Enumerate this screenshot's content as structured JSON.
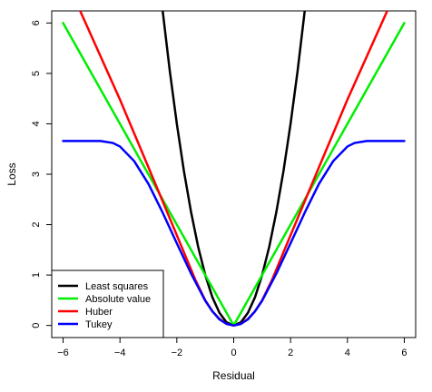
{
  "chart_data": {
    "type": "line",
    "title": "",
    "xlabel": "Residual",
    "ylabel": "Loss",
    "xlim": [
      -6.4,
      6.4
    ],
    "ylim": [
      -0.24,
      6.24
    ],
    "grid": false,
    "legend_position": "bottom-left",
    "x_ticks": [
      -6,
      -4,
      -2,
      0,
      2,
      4,
      6
    ],
    "x_tick_labels": [
      "−6",
      "−4",
      "−2",
      "0",
      "2",
      "4",
      "6"
    ],
    "y_ticks": [
      0,
      1,
      2,
      3,
      4,
      5,
      6
    ],
    "y_tick_labels": [
      "0",
      "1",
      "2",
      "3",
      "4",
      "5",
      "6"
    ],
    "series": [
      {
        "name": "Least squares",
        "color": "#000000",
        "x": [
          -2.5,
          -2.25,
          -2.0,
          -1.75,
          -1.5,
          -1.25,
          -1.0,
          -0.75,
          -0.5,
          -0.25,
          0.0,
          0.25,
          0.5,
          0.75,
          1.0,
          1.25,
          1.5,
          1.75,
          2.0,
          2.25,
          2.5
        ],
        "y": [
          6.25,
          5.06,
          4.0,
          3.06,
          2.25,
          1.56,
          1.0,
          0.56,
          0.25,
          0.06,
          0.0,
          0.06,
          0.25,
          0.56,
          1.0,
          1.56,
          2.25,
          3.06,
          4.0,
          5.06,
          6.25
        ]
      },
      {
        "name": "Absolute value",
        "color": "#00ee00",
        "x": [
          -6,
          0,
          6
        ],
        "y": [
          6,
          0,
          6
        ]
      },
      {
        "name": "Huber",
        "color": "#ff0000",
        "x": [
          -5.4,
          -4.0,
          -3.0,
          -2.0,
          -1.345,
          -1.0,
          -0.75,
          -0.5,
          -0.25,
          0.0,
          0.25,
          0.5,
          0.75,
          1.0,
          1.345,
          2.0,
          3.0,
          4.0,
          5.4
        ],
        "y": [
          6.24,
          4.48,
          3.14,
          1.79,
          0.9,
          0.5,
          0.28,
          0.13,
          0.03,
          0.0,
          0.03,
          0.13,
          0.28,
          0.5,
          0.9,
          1.79,
          3.14,
          4.48,
          6.24
        ]
      },
      {
        "name": "Tukey",
        "color": "#0000ff",
        "x": [
          -6.0,
          -5.0,
          -4.685,
          -4.25,
          -4.0,
          -3.5,
          -3.0,
          -2.5,
          -2.0,
          -1.5,
          -1.0,
          -0.75,
          -0.5,
          -0.25,
          0.0,
          0.25,
          0.5,
          0.75,
          1.0,
          1.5,
          2.0,
          2.5,
          3.0,
          3.5,
          4.0,
          4.25,
          4.685,
          5.0,
          6.0
        ],
        "y": [
          3.66,
          3.66,
          3.66,
          3.62,
          3.55,
          3.26,
          2.81,
          2.24,
          1.63,
          1.03,
          0.49,
          0.28,
          0.12,
          0.03,
          0.0,
          0.03,
          0.12,
          0.28,
          0.49,
          1.03,
          1.63,
          2.24,
          2.81,
          3.26,
          3.55,
          3.62,
          3.66,
          3.66,
          3.66
        ]
      }
    ]
  }
}
